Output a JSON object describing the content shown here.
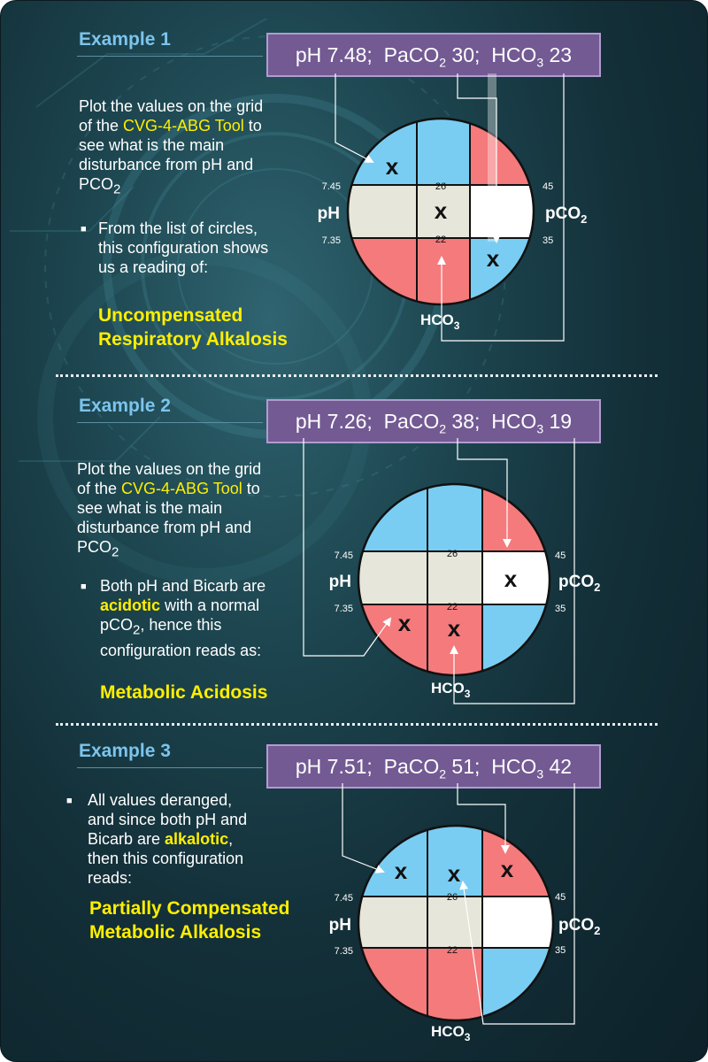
{
  "examples": [
    {
      "title": "Example 1",
      "values": {
        "ph": "pH 7.48;",
        "paco2_pre": "PaCO",
        "paco2_sub": "2",
        "paco2_val": " 30;",
        "hco3_pre": "HCO",
        "hco3_sub": "3",
        "hco3_val": " 23"
      },
      "intro": {
        "a": "Plot the values on the grid of the ",
        "tool": "CVG-4-ABG Tool",
        "b": " to see what is the main disturbance from pH and PCO",
        "sub": "2"
      },
      "bullet": {
        "a": "From the list of circles, this configuration shows us a reading of:"
      },
      "conclusion": [
        "Uncompensated",
        "Respiratory Alkalosis"
      ],
      "marks": [
        "x",
        "x",
        "x"
      ]
    },
    {
      "title": "Example 2",
      "values": {
        "ph": "pH 7.26;",
        "paco2_pre": "PaCO",
        "paco2_sub": "2",
        "paco2_val": " 38;",
        "hco3_pre": "HCO",
        "hco3_sub": "3",
        "hco3_val": " 19"
      },
      "intro": {
        "a": "Plot the values on the grid of the ",
        "tool": "CVG-4-ABG Tool",
        "b": " to see what is the main disturbance from pH and PCO",
        "sub": "2"
      },
      "bullet": {
        "a": "Both pH and Bicarb are ",
        "hl": "acidotic",
        "b": " with a normal pCO",
        "sub": "2",
        "c": ", hence this configuration reads as:"
      },
      "conclusion": [
        "Metabolic Acidosis"
      ],
      "marks": [
        "x",
        "x",
        "x"
      ]
    },
    {
      "title": "Example 3",
      "values": {
        "ph": "pH 7.51;",
        "paco2_pre": "PaCO",
        "paco2_sub": "2",
        "paco2_val": " 51;",
        "hco3_pre": "HCO",
        "hco3_sub": "3",
        "hco3_val": " 42"
      },
      "bullet": {
        "a": "All values deranged, and since both pH and Bicarb are ",
        "hl": "alkalotic",
        "b": ", then this configuration reads:"
      },
      "conclusion": [
        "Partially Compensated",
        "Metabolic Alkalosis"
      ],
      "marks": [
        "x",
        "x",
        "x"
      ]
    }
  ],
  "grid_labels": {
    "ph": "pH",
    "pco2_pre": "pCO",
    "pco2_sub": "2",
    "hco3_pre": "HCO",
    "hco3_sub": "3",
    "ph_high": "7.45",
    "ph_low": "7.35",
    "hco3_high": "26",
    "hco3_low": "22",
    "pco2_high": "45",
    "pco2_low": "35"
  },
  "colors": {
    "acid": "#f47a7c",
    "alkaline": "#79cdf2",
    "normal": "#e6e7da",
    "white": "#ffffff",
    "box": "#735a93",
    "highlight": "#ffef00",
    "title": "#7cc4ec"
  }
}
